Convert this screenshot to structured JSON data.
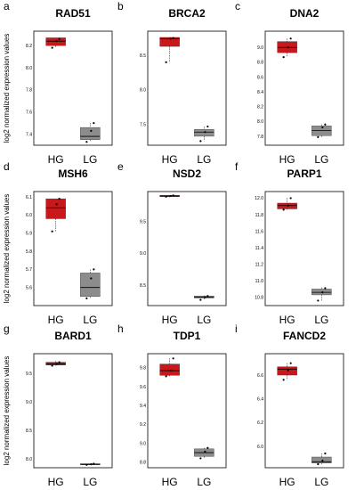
{
  "figure": {
    "ylabel": "log2 normalized expression values",
    "box_colors": {
      "HG": "#c8181c",
      "LG": "#8c8c8c"
    }
  },
  "chart_data": [
    {
      "letter": "a",
      "type": "box",
      "title": "RAD51",
      "categories": [
        "HG",
        "LG"
      ],
      "ylabel": "log2 normalized expression values",
      "yticks": [
        "8.2",
        "8.0",
        "7.8",
        "7.6",
        "7.4"
      ],
      "tick_values": [
        8.2,
        8.0,
        7.8,
        7.6,
        7.4
      ],
      "ylim": [
        7.3,
        8.33
      ],
      "boxes": [
        {
          "name": "HG",
          "min": 8.18,
          "q1": 8.2,
          "median": 8.24,
          "q3": 8.27,
          "max": 8.27,
          "points": [
            8.18,
            8.24,
            8.26
          ]
        },
        {
          "name": "LG",
          "min": 7.33,
          "q1": 7.35,
          "median": 7.38,
          "q3": 7.46,
          "max": 7.5,
          "points": [
            7.33,
            7.43,
            7.5
          ]
        }
      ]
    },
    {
      "letter": "b",
      "type": "box",
      "title": "BRCA2",
      "categories": [
        "HG",
        "LG"
      ],
      "ylabel": "",
      "yticks": [
        "8.5",
        "8.0",
        "7.5"
      ],
      "tick_values": [
        8.5,
        8.0,
        7.5
      ],
      "ylim": [
        7.2,
        8.85
      ],
      "boxes": [
        {
          "name": "HG",
          "min": 8.4,
          "q1": 8.63,
          "median": 8.74,
          "q3": 8.76,
          "max": 8.76,
          "points": [
            8.4,
            8.74,
            8.75
          ]
        },
        {
          "name": "LG",
          "min": 7.26,
          "q1": 7.33,
          "median": 7.39,
          "q3": 7.43,
          "max": 7.47,
          "points": [
            7.26,
            7.39,
            7.47
          ]
        }
      ]
    },
    {
      "letter": "c",
      "type": "box",
      "title": "DNA2",
      "categories": [
        "HG",
        "LG"
      ],
      "ylabel": "",
      "yticks": [
        "9.0",
        "8.8",
        "8.6",
        "8.4",
        "8.2",
        "8.0",
        "7.8"
      ],
      "tick_values": [
        9.0,
        8.8,
        8.6,
        8.4,
        8.2,
        8.0,
        7.8
      ],
      "ylim": [
        7.68,
        9.22
      ],
      "boxes": [
        {
          "name": "HG",
          "min": 8.87,
          "q1": 8.93,
          "median": 9.0,
          "q3": 9.08,
          "max": 9.12,
          "points": [
            8.87,
            9.0,
            9.12
          ]
        },
        {
          "name": "LG",
          "min": 7.79,
          "q1": 7.81,
          "median": 7.88,
          "q3": 7.94,
          "max": 7.96,
          "points": [
            7.79,
            7.92,
            7.96
          ]
        }
      ]
    },
    {
      "letter": "d",
      "type": "box",
      "title": "MSH6",
      "categories": [
        "HG",
        "LG"
      ],
      "ylabel": "log2 normalized expression values",
      "yticks": [
        "6.1",
        "6.0",
        "5.9",
        "5.8",
        "5.7",
        "5.6"
      ],
      "tick_values": [
        6.1,
        6.0,
        5.9,
        5.8,
        5.7,
        5.6
      ],
      "ylim": [
        5.5,
        6.13
      ],
      "boxes": [
        {
          "name": "HG",
          "min": 5.91,
          "q1": 5.98,
          "median": 6.04,
          "q3": 6.09,
          "max": 6.09,
          "points": [
            5.91,
            6.06,
            6.09
          ]
        },
        {
          "name": "LG",
          "min": 5.54,
          "q1": 5.55,
          "median": 5.6,
          "q3": 5.68,
          "max": 5.7,
          "points": [
            5.54,
            5.65,
            5.7
          ]
        }
      ]
    },
    {
      "letter": "e",
      "type": "box",
      "title": "NSD2",
      "categories": [
        "HG",
        "LG"
      ],
      "ylabel": "",
      "yticks": [
        "9.5",
        "9.0",
        "8.5"
      ],
      "tick_values": [
        9.5,
        9.0,
        8.5
      ],
      "ylim": [
        8.18,
        9.97
      ],
      "boxes": [
        {
          "name": "HG",
          "min": 9.88,
          "q1": 9.89,
          "median": 9.9,
          "q3": 9.91,
          "max": 9.91,
          "points": [
            9.89,
            9.9,
            9.91
          ]
        },
        {
          "name": "LG",
          "min": 8.27,
          "q1": 8.3,
          "median": 8.31,
          "q3": 8.33,
          "max": 8.34,
          "points": [
            8.27,
            8.31,
            8.33
          ]
        }
      ]
    },
    {
      "letter": "f",
      "type": "box",
      "title": "PARP1",
      "categories": [
        "HG",
        "LG"
      ],
      "ylabel": "",
      "yticks": [
        "12.0",
        "11.8",
        "11.6",
        "11.4",
        "11.2",
        "11.0",
        "10.8"
      ],
      "tick_values": [
        12.0,
        11.8,
        11.6,
        11.4,
        11.2,
        11.0,
        10.8
      ],
      "ylim": [
        10.7,
        12.08
      ],
      "boxes": [
        {
          "name": "HG",
          "min": 11.86,
          "q1": 11.87,
          "median": 11.91,
          "q3": 11.94,
          "max": 12.0,
          "points": [
            11.86,
            11.91,
            12.0
          ]
        },
        {
          "name": "LG",
          "min": 10.76,
          "q1": 10.83,
          "median": 10.86,
          "q3": 10.9,
          "max": 10.92,
          "points": [
            10.76,
            10.86,
            10.91
          ]
        }
      ]
    },
    {
      "letter": "g",
      "type": "box",
      "title": "BARD1",
      "categories": [
        "HG",
        "LG"
      ],
      "ylabel": "log2 normalized expression values",
      "yticks": [
        "9.5",
        "9.0",
        "8.5",
        "8.0"
      ],
      "tick_values": [
        9.5,
        9.0,
        8.5,
        8.0
      ],
      "ylim": [
        7.85,
        9.85
      ],
      "boxes": [
        {
          "name": "HG",
          "min": 9.64,
          "q1": 9.65,
          "median": 9.67,
          "q3": 9.7,
          "max": 9.72,
          "points": [
            9.64,
            9.67,
            9.7
          ]
        },
        {
          "name": "LG",
          "min": 7.9,
          "q1": 7.91,
          "median": 7.91,
          "q3": 7.92,
          "max": 7.92,
          "points": [
            7.9,
            7.91,
            7.92
          ]
        }
      ]
    },
    {
      "letter": "h",
      "type": "box",
      "title": "TDP1",
      "categories": [
        "HG",
        "LG"
      ],
      "ylabel": "",
      "yticks": [
        "9.8",
        "9.6",
        "9.4",
        "9.2",
        "9.0",
        "8.8"
      ],
      "tick_values": [
        9.8,
        9.6,
        9.4,
        9.2,
        9.0,
        8.8
      ],
      "ylim": [
        8.74,
        9.95
      ],
      "boxes": [
        {
          "name": "HG",
          "min": 9.71,
          "q1": 9.72,
          "median": 9.77,
          "q3": 9.84,
          "max": 9.9,
          "points": [
            9.71,
            9.77,
            9.9
          ]
        },
        {
          "name": "LG",
          "min": 8.84,
          "q1": 8.86,
          "median": 8.9,
          "q3": 8.94,
          "max": 8.95,
          "points": [
            8.84,
            8.91,
            8.95
          ]
        }
      ]
    },
    {
      "letter": "i",
      "type": "box",
      "title": "FANCD2",
      "categories": [
        "HG",
        "LG"
      ],
      "ylabel": "",
      "yticks": [
        "6.6",
        "6.4",
        "6.2",
        "6.0"
      ],
      "tick_values": [
        6.6,
        6.4,
        6.2,
        6.0
      ],
      "ylim": [
        5.82,
        6.78
      ],
      "boxes": [
        {
          "name": "HG",
          "min": 6.56,
          "q1": 6.6,
          "median": 6.65,
          "q3": 6.67,
          "max": 6.7,
          "points": [
            6.56,
            6.64,
            6.7
          ]
        },
        {
          "name": "LG",
          "min": 5.85,
          "q1": 5.86,
          "median": 5.87,
          "q3": 5.91,
          "max": 5.94,
          "points": [
            5.85,
            5.88,
            5.94
          ]
        }
      ]
    }
  ]
}
